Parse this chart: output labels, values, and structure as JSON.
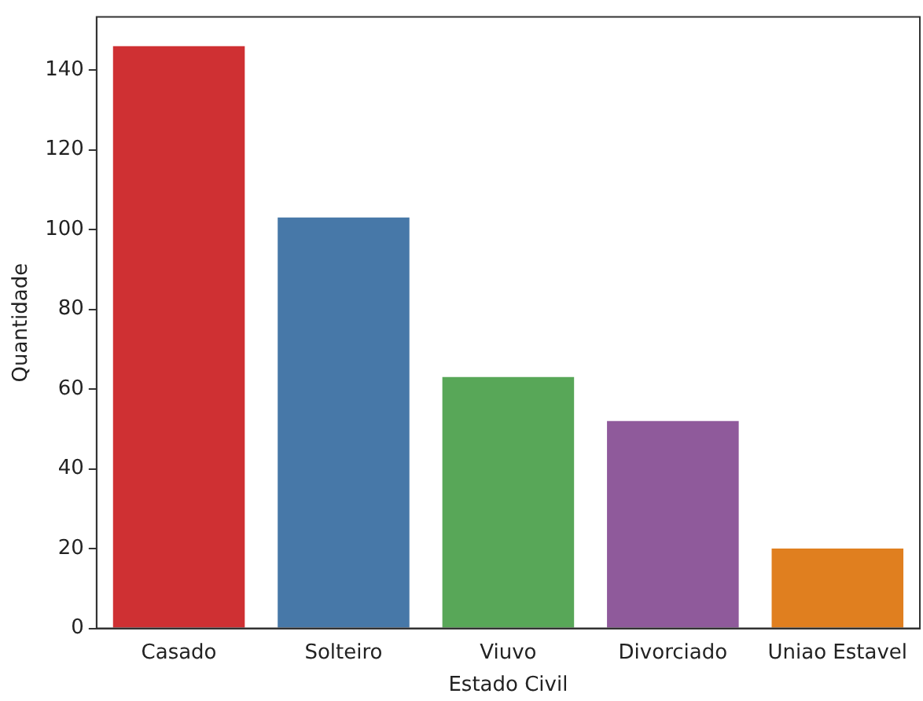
{
  "chart_data": {
    "type": "bar",
    "xlabel": "Estado Civil",
    "ylabel": "Quantidade",
    "categories": [
      "Casado",
      "Solteiro",
      "Viuvo",
      "Divorciado",
      "Uniao Estavel"
    ],
    "values": [
      146,
      103,
      63,
      52,
      20
    ],
    "colors": [
      "#cf3033",
      "#4778a8",
      "#58a758",
      "#8f5a9b",
      "#e07f1f"
    ],
    "ylim": [
      0,
      153.3
    ],
    "yticks": [
      0,
      20,
      40,
      60,
      80,
      100,
      120,
      140
    ],
    "grid": false,
    "legend": false
  }
}
